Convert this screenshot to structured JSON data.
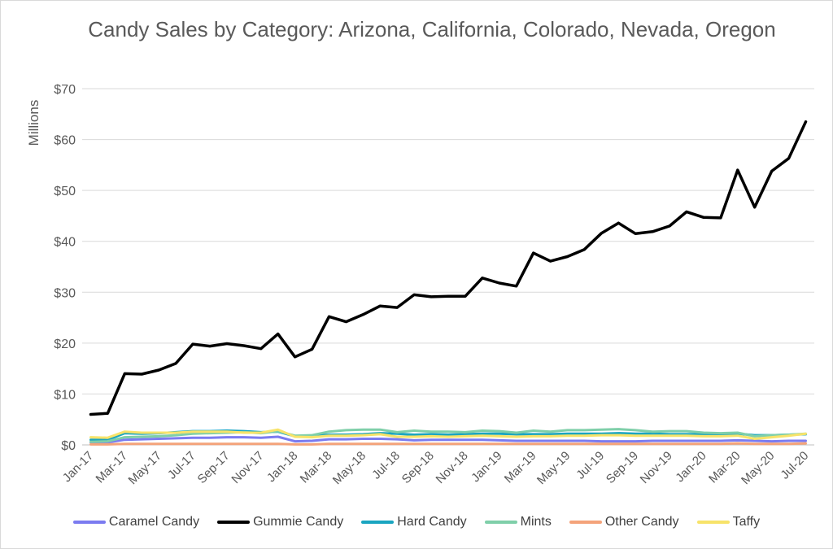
{
  "chart_data": {
    "type": "line",
    "title": "Candy Sales by Category: Arizona, California, Colorado, Nevada, Oregon",
    "ylabel": "Millions",
    "xlabel": "",
    "ylim": [
      0,
      70
    ],
    "yticks": [
      "$0",
      "$10",
      "$20",
      "$30",
      "$40",
      "$50",
      "$60",
      "$70"
    ],
    "grid": true,
    "legend_position": "bottom",
    "x": [
      "Jan-17",
      "Feb-17",
      "Mar-17",
      "Apr-17",
      "May-17",
      "Jun-17",
      "Jul-17",
      "Aug-17",
      "Sep-17",
      "Oct-17",
      "Nov-17",
      "Dec-17",
      "Jan-18",
      "Feb-18",
      "Mar-18",
      "Apr-18",
      "May-18",
      "Jun-18",
      "Jul-18",
      "Aug-18",
      "Sep-18",
      "Oct-18",
      "Nov-18",
      "Dec-18",
      "Jan-19",
      "Feb-19",
      "Mar-19",
      "Apr-19",
      "May-19",
      "Jun-19",
      "Jul-19",
      "Aug-19",
      "Sep-19",
      "Oct-19",
      "Nov-19",
      "Dec-19",
      "Jan-20",
      "Feb-20",
      "Mar-20",
      "Apr-20",
      "May-20",
      "Jun-20",
      "Jul-20"
    ],
    "xtick_labels": [
      "Jan-17",
      "Mar-17",
      "May-17",
      "Jul-17",
      "Sep-17",
      "Nov-17",
      "Jan-18",
      "Mar-18",
      "May-18",
      "Jul-18",
      "Sep-18",
      "Nov-18",
      "Jan-19",
      "Mar-19",
      "May-19",
      "Jul-19",
      "Sep-19",
      "Nov-19",
      "Jan-20",
      "Mar-20",
      "May-20",
      "Jul-20"
    ],
    "series": [
      {
        "name": "Caramel Candy",
        "color": "#7b7bf0",
        "values": [
          0.5,
          0.5,
          1.0,
          1.1,
          1.2,
          1.3,
          1.4,
          1.4,
          1.5,
          1.5,
          1.4,
          1.6,
          0.7,
          0.8,
          1.1,
          1.1,
          1.2,
          1.2,
          1.1,
          0.9,
          1.0,
          1.0,
          1.0,
          1.0,
          0.9,
          0.8,
          0.8,
          0.8,
          0.8,
          0.8,
          0.7,
          0.7,
          0.7,
          0.8,
          0.8,
          0.8,
          0.8,
          0.8,
          0.9,
          0.8,
          0.7,
          0.8,
          0.8
        ]
      },
      {
        "name": "Gummie Candy",
        "color": "#000000",
        "values": [
          6.0,
          6.2,
          14.0,
          13.9,
          14.7,
          16.0,
          19.8,
          19.4,
          19.9,
          19.5,
          18.9,
          21.8,
          17.3,
          18.8,
          25.2,
          24.2,
          25.6,
          27.3,
          27.0,
          29.5,
          29.1,
          29.2,
          29.2,
          32.8,
          31.8,
          31.2,
          37.7,
          36.1,
          37.0,
          38.4,
          41.6,
          43.6,
          41.5,
          41.9,
          43.0,
          45.8,
          44.7,
          44.6,
          54.0,
          46.7,
          53.8,
          56.3,
          63.5
        ]
      },
      {
        "name": "Hard Candy",
        "color": "#1aa5c0",
        "values": [
          1.0,
          1.0,
          2.3,
          2.2,
          2.3,
          2.5,
          2.7,
          2.7,
          2.8,
          2.7,
          2.5,
          2.6,
          1.7,
          1.8,
          2.0,
          2.0,
          2.1,
          2.3,
          2.2,
          2.0,
          2.1,
          2.0,
          2.1,
          2.2,
          2.2,
          2.1,
          2.1,
          2.1,
          2.2,
          2.2,
          2.2,
          2.3,
          2.2,
          2.2,
          2.1,
          2.1,
          2.1,
          2.1,
          2.2,
          1.9,
          1.9,
          2.0,
          2.1
        ]
      },
      {
        "name": "Mints",
        "color": "#7fcfa9",
        "values": [
          0.6,
          0.7,
          1.5,
          1.6,
          1.7,
          1.9,
          2.2,
          2.3,
          2.4,
          2.5,
          2.3,
          2.7,
          1.8,
          1.9,
          2.6,
          2.9,
          3.0,
          3.0,
          2.5,
          2.8,
          2.6,
          2.6,
          2.5,
          2.8,
          2.7,
          2.4,
          2.8,
          2.6,
          2.9,
          2.9,
          3.0,
          3.1,
          2.9,
          2.6,
          2.7,
          2.7,
          2.4,
          2.3,
          2.4,
          1.7,
          1.9,
          2.0,
          2.2
        ]
      },
      {
        "name": "Other Candy",
        "color": "#f4a37a",
        "values": [
          0.1,
          0.1,
          0.2,
          0.2,
          0.2,
          0.2,
          0.2,
          0.2,
          0.2,
          0.2,
          0.2,
          0.2,
          0.1,
          0.1,
          0.2,
          0.2,
          0.2,
          0.2,
          0.2,
          0.2,
          0.2,
          0.2,
          0.2,
          0.2,
          0.2,
          0.2,
          0.2,
          0.2,
          0.2,
          0.2,
          0.2,
          0.2,
          0.2,
          0.2,
          0.2,
          0.2,
          0.2,
          0.2,
          0.3,
          0.2,
          0.2,
          0.2,
          0.3
        ]
      },
      {
        "name": "Taffy",
        "color": "#f7e36a",
        "values": [
          1.5,
          1.4,
          2.6,
          2.4,
          2.4,
          2.4,
          2.6,
          2.6,
          2.6,
          2.4,
          2.4,
          3.0,
          1.6,
          1.5,
          1.8,
          1.8,
          1.9,
          2.1,
          1.6,
          1.6,
          1.7,
          1.6,
          1.7,
          1.8,
          1.7,
          1.6,
          1.7,
          1.7,
          1.8,
          1.8,
          1.9,
          1.9,
          1.8,
          1.8,
          1.8,
          1.8,
          1.7,
          1.7,
          1.8,
          1.2,
          1.5,
          1.8,
          2.2
        ]
      }
    ]
  }
}
